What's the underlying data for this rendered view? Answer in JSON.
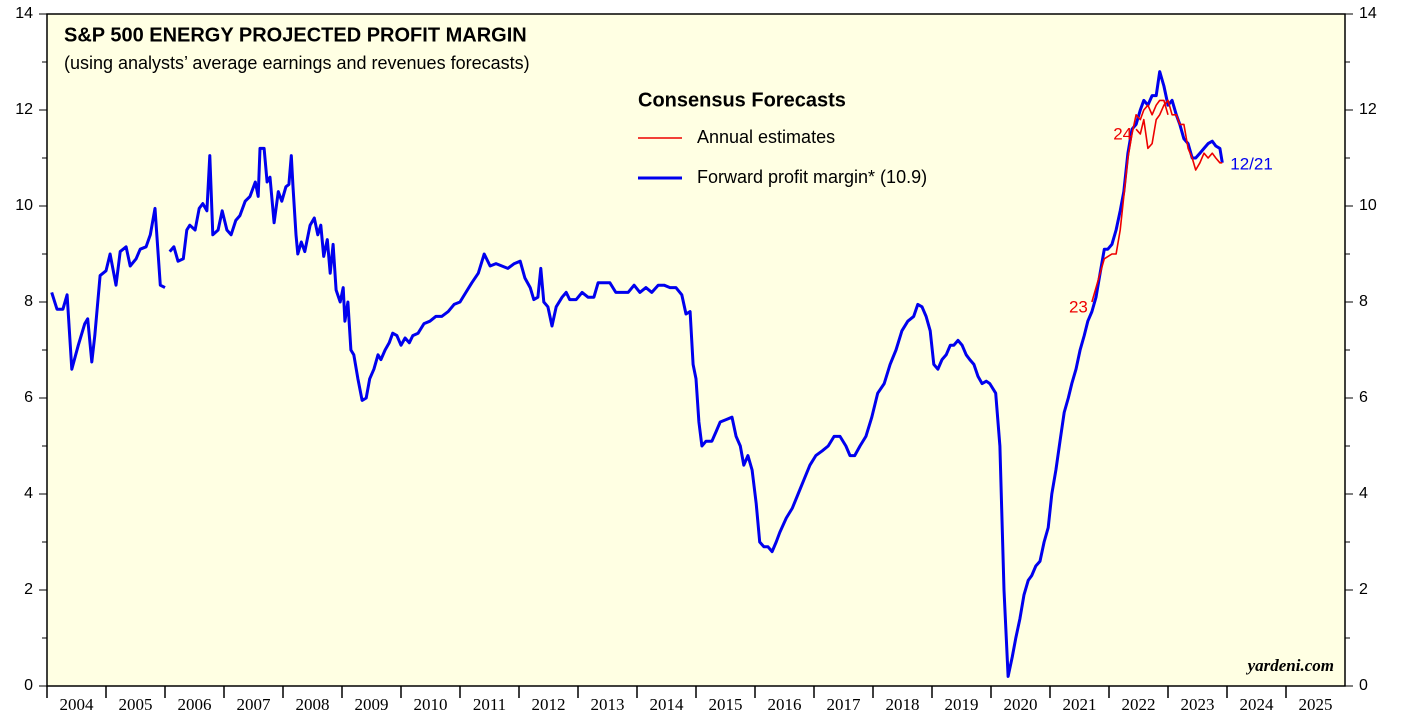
{
  "chart_data": {
    "type": "line",
    "title": "S&P 500 ENERGY PROJECTED PROFIT MARGIN",
    "subtitle": "(using analysts’ average earnings and revenues forecasts)",
    "legend_title": "Consensus Forecasts",
    "source": "yardeni.com",
    "xlim": [
      2004,
      2026
    ],
    "xticks": [
      2004,
      2005,
      2006,
      2007,
      2008,
      2009,
      2010,
      2011,
      2012,
      2013,
      2014,
      2015,
      2016,
      2017,
      2018,
      2019,
      2020,
      2021,
      2022,
      2023,
      2024,
      2025
    ],
    "ylim": [
      0,
      14
    ],
    "yticks": [
      0,
      2,
      4,
      6,
      8,
      10,
      12,
      14
    ],
    "minor_yticks": [
      1,
      3,
      5,
      7,
      9,
      11,
      13
    ],
    "series": [
      {
        "name": "Forward profit margin* (10.9)",
        "color": "#0000ee",
        "end_label": "12/21",
        "x": [
          2004.08,
          2004.17,
          2004.27,
          2004.34,
          2004.42,
          2004.53,
          2004.64,
          2004.69,
          2004.76,
          2004.81,
          2004.9,
          2005,
          2005.07,
          2005.17,
          2005.24,
          2005.34,
          2005.41,
          2005.51,
          2005.58,
          2005.68,
          2005.75,
          2005.83,
          2005.92,
          2006,
          2006.04,
          2006.08,
          2006.15,
          2006.22,
          2006.31,
          2006.37,
          2006.42,
          2006.51,
          2006.58,
          2006.64,
          2006.71,
          2006.76,
          2006.81,
          2006.9,
          2006.97,
          2007.05,
          2007.12,
          2007.2,
          2007.27,
          2007.36,
          2007.44,
          2007.53,
          2007.58,
          2007.61,
          2007.68,
          2007.73,
          2007.78,
          2007.85,
          2007.92,
          2007.98,
          2008.05,
          2008.1,
          2008.14,
          2008.17,
          2008.22,
          2008.25,
          2008.31,
          2008.37,
          2008.46,
          2008.53,
          2008.59,
          2008.64,
          2008.69,
          2008.75,
          2008.8,
          2008.85,
          2008.9,
          2008.97,
          2009.02,
          2009.05,
          2009.1,
          2009.15,
          2009.2,
          2009.27,
          2009.34,
          2009.41,
          2009.47,
          2009.54,
          2009.61,
          2009.66,
          2009.73,
          2009.8,
          2009.86,
          2009.93,
          2010,
          2010.07,
          2010.14,
          2010.2,
          2010.29,
          2010.39,
          2010.49,
          2010.59,
          2010.69,
          2010.8,
          2010.9,
          2011,
          2011.1,
          2011.2,
          2011.31,
          2011.41,
          2011.51,
          2011.61,
          2011.71,
          2011.81,
          2011.92,
          2012.02,
          2012.1,
          2012.19,
          2012.25,
          2012.32,
          2012.37,
          2012.42,
          2012.49,
          2012.56,
          2012.63,
          2012.73,
          2012.8,
          2012.86,
          2012.97,
          2013.07,
          2013.17,
          2013.27,
          2013.34,
          2013.44,
          2013.54,
          2013.64,
          2013.75,
          2013.85,
          2013.95,
          2014.05,
          2014.15,
          2014.25,
          2014.36,
          2014.46,
          2014.56,
          2014.66,
          2014.76,
          2014.83,
          2014.9,
          2014.95,
          2015,
          2015.05,
          2015.1,
          2015.17,
          2015.27,
          2015.34,
          2015.41,
          2015.51,
          2015.61,
          2015.68,
          2015.75,
          2015.81,
          2015.88,
          2015.95,
          2016.02,
          2016.08,
          2016.15,
          2016.22,
          2016.29,
          2016.36,
          2016.42,
          2016.53,
          2016.63,
          2016.73,
          2016.83,
          2016.93,
          2017.03,
          2017.14,
          2017.24,
          2017.34,
          2017.44,
          2017.54,
          2017.61,
          2017.69,
          2017.78,
          2017.88,
          2017.98,
          2018.08,
          2018.19,
          2018.29,
          2018.39,
          2018.49,
          2018.59,
          2018.69,
          2018.76,
          2018.83,
          2018.9,
          2018.97,
          2019.03,
          2019.1,
          2019.17,
          2019.24,
          2019.31,
          2019.37,
          2019.44,
          2019.51,
          2019.58,
          2019.64,
          2019.71,
          2019.78,
          2019.85,
          2019.92,
          2019.98,
          2020.08,
          2020.15,
          2020.22,
          2020.29,
          2020.36,
          2020.42,
          2020.49,
          2020.56,
          2020.63,
          2020.69,
          2020.76,
          2020.83,
          2020.9,
          2020.97,
          2021.03,
          2021.1,
          2021.17,
          2021.24,
          2021.31,
          2021.37,
          2021.44,
          2021.51,
          2021.58,
          2021.64,
          2021.71,
          2021.78,
          2021.85,
          2021.92,
          2021.98,
          2022.05,
          2022.12,
          2022.19,
          2022.25,
          2022.32,
          2022.39,
          2022.46,
          2022.53,
          2022.59,
          2022.66,
          2022.73,
          2022.8,
          2022.86,
          2022.93,
          2023,
          2023.07,
          2023.14,
          2023.2,
          2023.27,
          2023.34,
          2023.41,
          2023.47,
          2023.54,
          2023.61,
          2023.68,
          2023.75,
          2023.81,
          2023.88,
          2023.92
        ],
        "values": [
          8.2,
          7.85,
          7.85,
          8.15,
          6.6,
          7.1,
          7.55,
          7.65,
          6.75,
          7.3,
          8.55,
          8.65,
          9.0,
          8.35,
          9.05,
          9.15,
          8.75,
          8.9,
          9.1,
          9.15,
          9.4,
          9.95,
          8.35,
          8.3,
          null,
          9.05,
          9.15,
          8.85,
          8.9,
          9.5,
          9.6,
          9.5,
          9.95,
          10.05,
          9.9,
          11.05,
          9.4,
          9.5,
          9.9,
          9.5,
          9.4,
          9.7,
          9.8,
          10.1,
          10.2,
          10.5,
          10.2,
          11.2,
          11.2,
          10.5,
          10.6,
          9.65,
          10.3,
          10.1,
          10.4,
          10.45,
          11.05,
          10.4,
          9.4,
          9.0,
          9.25,
          9.05,
          9.6,
          9.75,
          9.4,
          9.6,
          8.95,
          9.3,
          8.6,
          9.2,
          8.25,
          8.0,
          8.3,
          7.6,
          8.0,
          7.0,
          6.9,
          6.4,
          5.95,
          6.0,
          6.4,
          6.6,
          6.9,
          6.8,
          7.0,
          7.15,
          7.35,
          7.3,
          7.1,
          7.25,
          7.15,
          7.3,
          7.35,
          7.55,
          7.6,
          7.7,
          7.7,
          7.8,
          7.95,
          8.0,
          8.2,
          8.4,
          8.6,
          9.0,
          8.75,
          8.8,
          8.75,
          8.7,
          8.8,
          8.85,
          8.5,
          8.3,
          8.05,
          8.1,
          8.7,
          8.0,
          7.9,
          7.5,
          7.9,
          8.1,
          8.2,
          8.05,
          8.05,
          8.2,
          8.1,
          8.1,
          8.4,
          8.4,
          8.4,
          8.2,
          8.2,
          8.2,
          8.35,
          8.2,
          8.3,
          8.2,
          8.35,
          8.35,
          8.3,
          8.3,
          8.15,
          7.75,
          7.8,
          6.7,
          6.4,
          5.5,
          5.0,
          5.1,
          5.1,
          5.3,
          5.5,
          5.55,
          5.6,
          5.2,
          5.0,
          4.6,
          4.8,
          4.5,
          3.8,
          3.0,
          2.9,
          2.9,
          2.8,
          3.0,
          3.2,
          3.5,
          3.7,
          4.0,
          4.3,
          4.6,
          4.8,
          4.9,
          5.0,
          5.2,
          5.2,
          5.0,
          4.8,
          4.8,
          5.0,
          5.2,
          5.6,
          6.1,
          6.3,
          6.7,
          7.0,
          7.4,
          7.6,
          7.7,
          7.95,
          7.9,
          7.7,
          7.4,
          6.7,
          6.6,
          6.8,
          6.9,
          7.1,
          7.1,
          7.2,
          7.1,
          6.9,
          6.8,
          6.7,
          6.45,
          6.3,
          6.35,
          6.3,
          6.1,
          5.0,
          2.0,
          0.2,
          0.6,
          1.0,
          1.4,
          1.9,
          2.2,
          2.3,
          2.5,
          2.6,
          3.0,
          3.3,
          4.0,
          4.5,
          5.1,
          5.7,
          6.0,
          6.3,
          6.6,
          7.0,
          7.3,
          7.6,
          7.8,
          8.1,
          8.6,
          9.1,
          9.1,
          9.2,
          9.5,
          9.9,
          10.3,
          11.1,
          11.6,
          11.7,
          12.0,
          12.2,
          12.1,
          12.3,
          12.3,
          12.8,
          12.5,
          12.1,
          12.2,
          11.9,
          11.7,
          11.4,
          11.3,
          11.0,
          11.0,
          11.1,
          11.2,
          11.3,
          11.35,
          11.25,
          11.2,
          10.9
        ]
      },
      {
        "name": "Annual estimates",
        "color": "#ee0000",
        "segments": [
          {
            "label": "23",
            "x": [
              2021.71,
              2021.92,
              2022.05,
              2022.12,
              2022.19,
              2022.25,
              2022.32,
              2022.39,
              2022.46,
              2022.53,
              2022.59,
              2022.66,
              2022.73,
              2022.8,
              2022.86,
              2022.93,
              2023
            ],
            "values": [
              8.0,
              8.9,
              9.0,
              9.0,
              9.5,
              10.2,
              11.0,
              11.5,
              11.9,
              11.8,
              12.0,
              12.1,
              11.9,
              12.1,
              12.2,
              12.2,
              11.9
            ]
          },
          {
            "label": "24",
            "x": [
              2022.46,
              2022.53,
              2022.59,
              2022.66,
              2022.73,
              2022.8,
              2022.86,
              2022.93,
              2023,
              2023.07,
              2023.14,
              2023.2,
              2023.27,
              2023.34,
              2023.41,
              2023.47,
              2023.54,
              2023.61,
              2023.68,
              2023.75,
              2023.81,
              2023.88,
              2023.92
            ],
            "values": [
              11.6,
              11.5,
              11.8,
              11.2,
              11.3,
              11.8,
              11.9,
              12.1,
              12.2,
              11.9,
              11.9,
              11.7,
              11.7,
              11.2,
              11.0,
              10.75,
              10.9,
              11.1,
              11.0,
              11.1,
              11.0,
              10.9,
              10.9
            ]
          }
        ]
      }
    ],
    "legend_order": [
      1,
      0
    ],
    "background": "#ffffe3"
  }
}
